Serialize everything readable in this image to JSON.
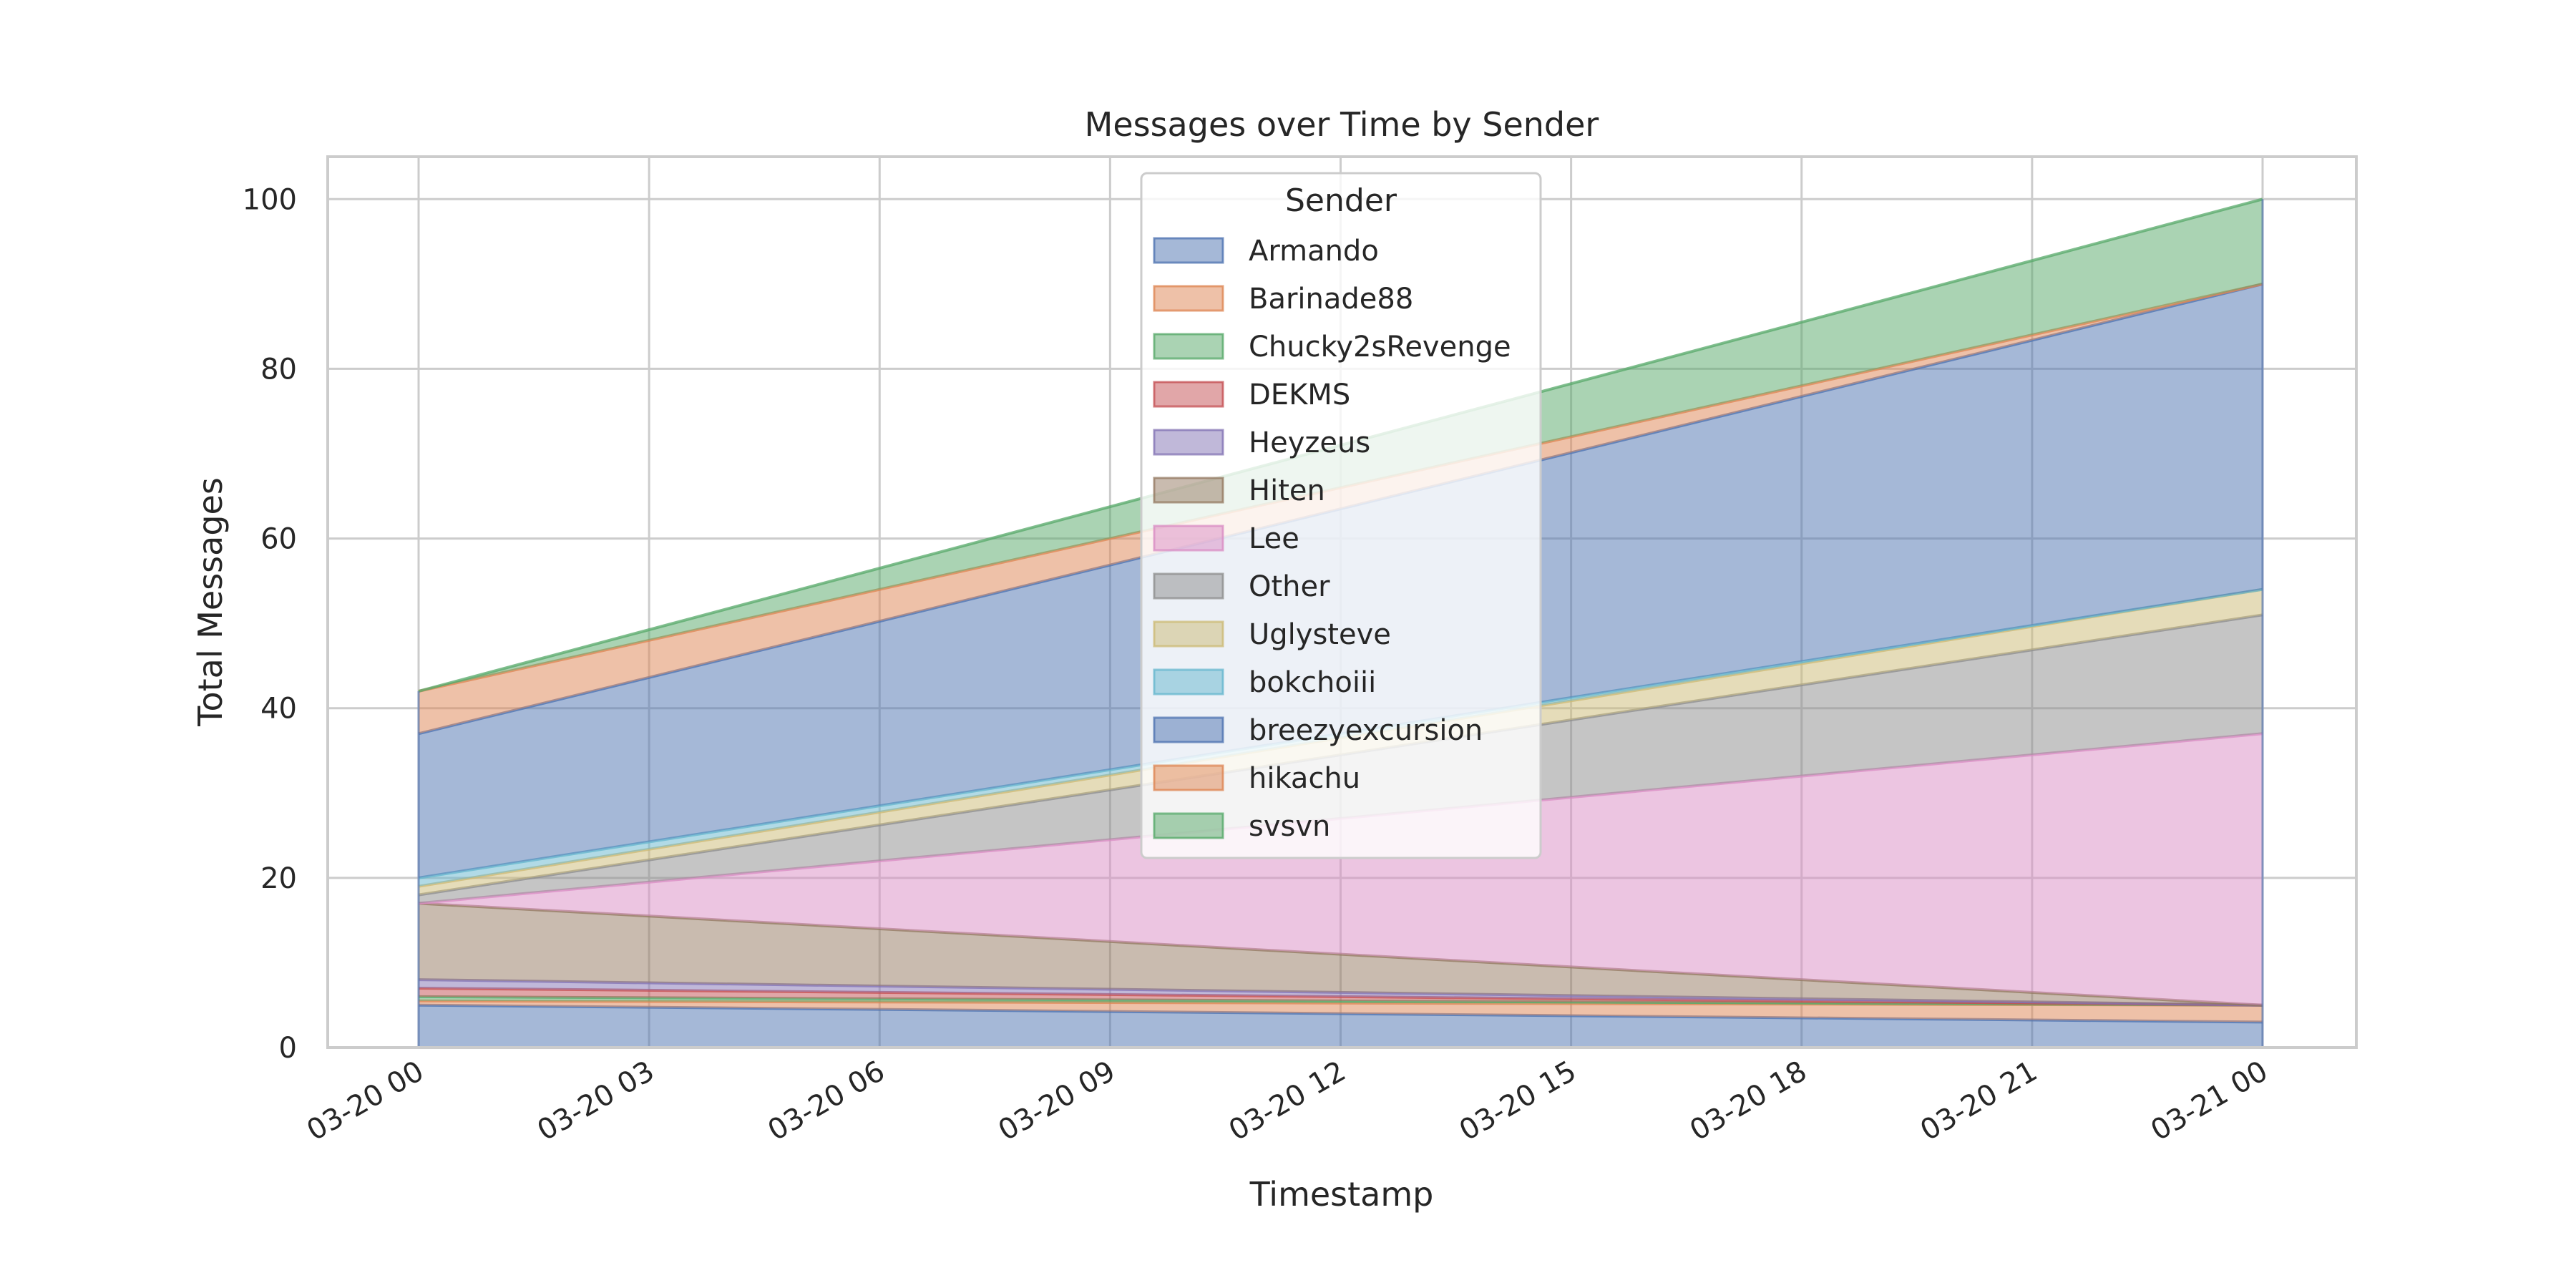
{
  "chart_data": {
    "type": "area",
    "stacked": true,
    "title": "Messages over Time by Sender",
    "xlabel": "Timestamp",
    "ylabel": "Total Messages",
    "x": [
      "03-20 00",
      "03-21 00"
    ],
    "x_ticks": [
      "03-20 00",
      "03-20 03",
      "03-20 06",
      "03-20 09",
      "03-20 12",
      "03-20 15",
      "03-20 18",
      "03-20 21",
      "03-21 00"
    ],
    "y_ticks": [
      0,
      20,
      40,
      60,
      80,
      100
    ],
    "ylim": [
      0,
      105
    ],
    "grid": true,
    "legend": {
      "title": "Sender",
      "placement": "top-center"
    },
    "series": [
      {
        "name": "Armando",
        "values": [
          5,
          3
        ],
        "color": "#4c72b0"
      },
      {
        "name": "Barinade88",
        "values": [
          0.5,
          2
        ],
        "color": "#dd8452"
      },
      {
        "name": "Chucky2sRevenge",
        "values": [
          0.5,
          0
        ],
        "color": "#55a868"
      },
      {
        "name": "DEKMS",
        "values": [
          1,
          0
        ],
        "color": "#c44e52"
      },
      {
        "name": "Heyzeus",
        "values": [
          1,
          0
        ],
        "color": "#8172b3"
      },
      {
        "name": "Hiten",
        "values": [
          9,
          0
        ],
        "color": "#937860"
      },
      {
        "name": "Lee",
        "values": [
          0,
          32
        ],
        "color": "#da8bc3"
      },
      {
        "name": "Other",
        "values": [
          1,
          14
        ],
        "color": "#8c8c8c"
      },
      {
        "name": "Uglysteve",
        "values": [
          1,
          3
        ],
        "color": "#ccb974"
      },
      {
        "name": "bokchoiii",
        "values": [
          1,
          0
        ],
        "color": "#64b5cd"
      },
      {
        "name": "breezyexcursion",
        "values": [
          17,
          36
        ],
        "color": "#4c72b0"
      },
      {
        "name": "hikachu",
        "values": [
          5,
          0
        ],
        "color": "#dd8452"
      },
      {
        "name": "svsvn",
        "values": [
          0,
          10
        ],
        "color": "#55a868"
      }
    ]
  }
}
